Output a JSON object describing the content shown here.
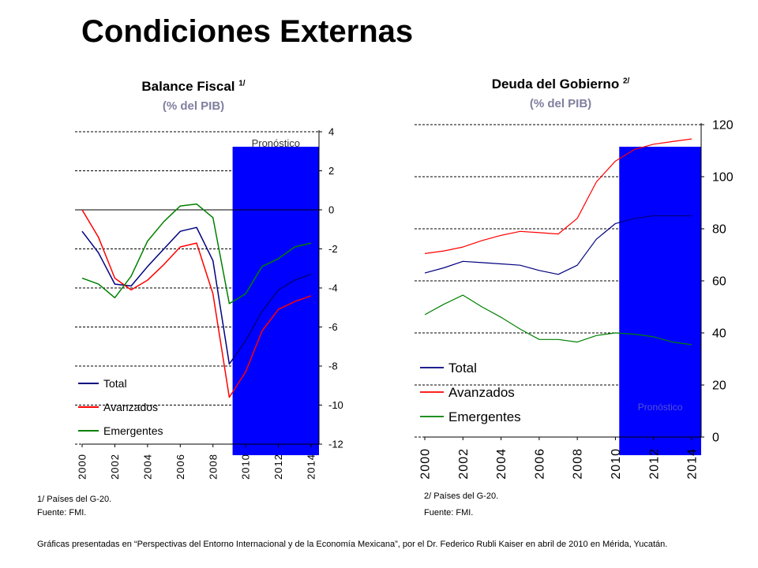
{
  "page": {
    "title": "Condiciones Externas",
    "footnote_left_1": "1/ Países del G-20.",
    "footnote_left_2": "Fuente: FMI.",
    "footnote_right_1": "2/ Países del G-20.",
    "footnote_right_2": "Fuente: FMI.",
    "credits": "Gráficas presentadas en “Perspectivas del Entorno Internacional y de la Economía Mexicana”, por el Dr. Federico Rubli Kaiser en abril de 2010  en Mérida, Yucatán."
  },
  "chart_data": [
    {
      "type": "line",
      "title": "Balance Fiscal",
      "title_sup": "1/",
      "subtitle": "(% del PIB)",
      "forecast_label": "Pronóstico",
      "forecast_start": 2009.2,
      "x": [
        2000,
        2001,
        2002,
        2003,
        2004,
        2005,
        2006,
        2007,
        2008,
        2009,
        2010,
        2011,
        2012,
        2013,
        2014
      ],
      "series": [
        {
          "name": "Total",
          "color": "#000080",
          "values": [
            -1.1,
            -2.2,
            -3.8,
            -3.9,
            -2.9,
            -2.0,
            -1.1,
            -0.9,
            -2.6,
            -7.9,
            -6.7,
            -5.2,
            -4.1,
            -3.6,
            -3.3
          ]
        },
        {
          "name": "Avanzados",
          "color": "#ff0000",
          "values": [
            0.0,
            -1.4,
            -3.5,
            -4.1,
            -3.6,
            -2.8,
            -1.9,
            -1.7,
            -4.3,
            -9.6,
            -8.3,
            -6.2,
            -5.1,
            -4.7,
            -4.4
          ]
        },
        {
          "name": "Emergentes",
          "color": "#008000",
          "values": [
            -3.5,
            -3.8,
            -4.5,
            -3.4,
            -1.6,
            -0.6,
            0.2,
            0.3,
            -0.4,
            -4.8,
            -4.3,
            -2.9,
            -2.5,
            -1.9,
            -1.7
          ]
        }
      ],
      "ylim": [
        -12,
        4
      ],
      "yticks": [
        4,
        2,
        0,
        -2,
        -4,
        -6,
        -8,
        -10,
        -12
      ],
      "xticks": [
        "2000",
        "2002",
        "2004",
        "2006",
        "2008",
        "2010",
        "2012",
        "2014"
      ],
      "yaxis_position": "right",
      "legend_position": "bottom-left",
      "grid": "dashed-horizontal"
    },
    {
      "type": "line",
      "title": "Deuda del Gobierno",
      "title_sup": "2/",
      "subtitle": "(% del PIB)",
      "forecast_label": "Pronóstico",
      "forecast_start": 2010.2,
      "x": [
        2000,
        2001,
        2002,
        2003,
        2004,
        2005,
        2006,
        2007,
        2008,
        2009,
        2010,
        2011,
        2012,
        2013,
        2014
      ],
      "series": [
        {
          "name": "Total",
          "color": "#000080",
          "values": [
            63,
            65,
            67.5,
            67,
            66.5,
            66,
            64,
            62.5,
            66,
            76,
            82,
            84,
            85,
            85,
            85
          ]
        },
        {
          "name": "Avanzados",
          "color": "#ff0000",
          "values": [
            70.5,
            71.5,
            73,
            75.5,
            77.5,
            79,
            78.5,
            78,
            84,
            98,
            106,
            110.5,
            112.5,
            113.5,
            114.5
          ]
        },
        {
          "name": "Emergentes",
          "color": "#008000",
          "values": [
            47,
            51,
            54.5,
            50,
            46,
            41.5,
            37.5,
            37.5,
            36.5,
            39,
            40,
            39.5,
            38.5,
            36.5,
            35.5
          ]
        }
      ],
      "ylim": [
        0,
        120
      ],
      "yticks": [
        120,
        100,
        80,
        60,
        40,
        20,
        0
      ],
      "xticks": [
        "2000",
        "2002",
        "2004",
        "2006",
        "2008",
        "2010",
        "2012",
        "2014"
      ],
      "yaxis_position": "right",
      "legend_position": "bottom-left",
      "grid": "dashed-horizontal"
    }
  ]
}
